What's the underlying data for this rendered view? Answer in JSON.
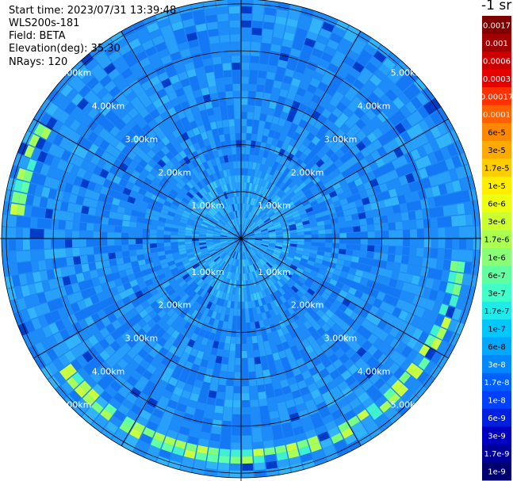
{
  "chart_data": {
    "type": "heatmap",
    "projection": "polar",
    "info_lines": [
      "Start time: 2023/07/31 13:39:48",
      "WLS200s-181",
      "Field: BETA",
      "Elevation(deg): 35.30",
      "NRays: 120"
    ],
    "colorbar_title": "-1 sr",
    "colorbar_labels": [
      "0.0017",
      "0.001",
      "0.0006",
      "0.0003",
      "0.00017",
      "0.0001",
      "6e-5",
      "3e-5",
      "1.7e-5",
      "1e-5",
      "6e-6",
      "3e-6",
      "1.7e-6",
      "1e-6",
      "6e-7",
      "3e-7",
      "1.7e-7",
      "1e-7",
      "6e-8",
      "3e-8",
      "1.7e-8",
      "1e-8",
      "6e-9",
      "3e-9",
      "1.7e-9",
      "1e-9"
    ],
    "colorbar_colors": [
      "#800000",
      "#a00000",
      "#cc0000",
      "#e80000",
      "#ff3000",
      "#ff6000",
      "#ff8800",
      "#ffaa00",
      "#ffcc00",
      "#ffee00",
      "#eeff10",
      "#ccff30",
      "#aaff50",
      "#88ff77",
      "#60ffa0",
      "#40ffc8",
      "#20eaea",
      "#00c8ff",
      "#00a8ff",
      "#0088ff",
      "#0060ff",
      "#0040ff",
      "#0020e0",
      "#0000c0",
      "#000098",
      "#000070"
    ],
    "ring_labels": [
      "1.00km",
      "2.00km",
      "3.00km",
      "4.00km",
      "5.00km"
    ],
    "ring_values_km": [
      1,
      2,
      3,
      4,
      5
    ],
    "max_range_km": 5.1,
    "n_rays": 120,
    "grid": true
  }
}
